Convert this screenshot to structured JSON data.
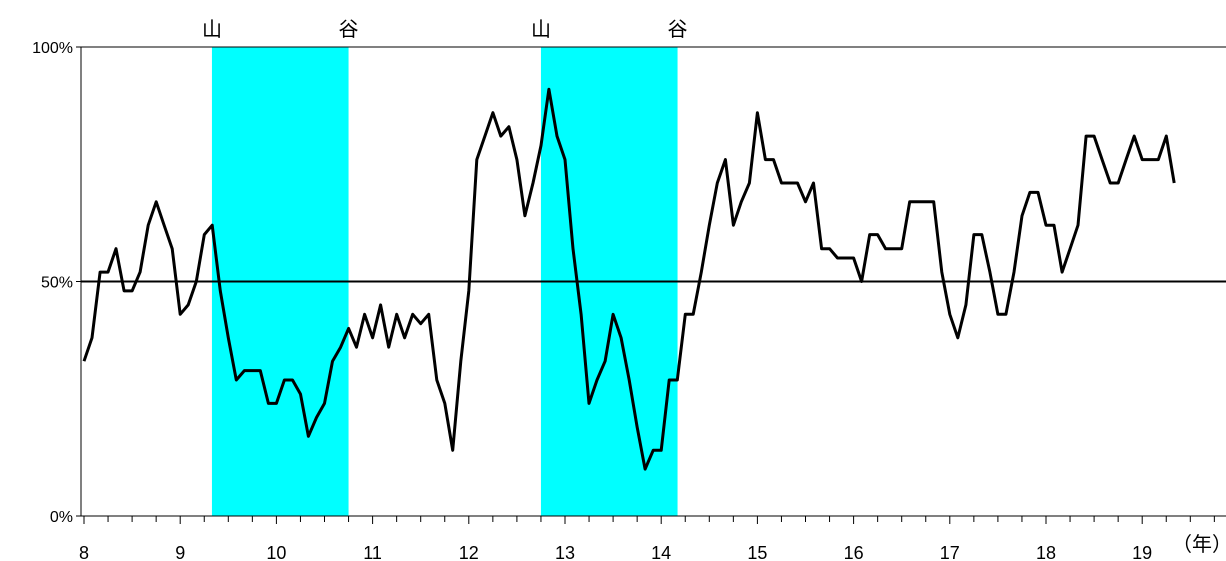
{
  "chart_data": {
    "type": "line",
    "x_unit_label": "（年）",
    "y_ticks": [
      "0%",
      "50%",
      "100%"
    ],
    "ylim": [
      0,
      100
    ],
    "xlim": [
      8,
      20
    ],
    "x_ticks": [
      "8",
      "9",
      "10",
      "11",
      "12",
      "13",
      "14",
      "15",
      "16",
      "17",
      "18",
      "19"
    ],
    "reference_line": 50,
    "shaded_periods": [
      {
        "start": 9.33,
        "end": 10.75,
        "start_label": "山",
        "end_label": "谷"
      },
      {
        "start": 12.75,
        "end": 14.17,
        "start_label": "山",
        "end_label": "谷"
      }
    ],
    "colors": {
      "line": "#000000",
      "shade": "#00ffff",
      "axis": "#000000"
    },
    "series": [
      {
        "x": [
          8.0,
          8.083,
          8.167,
          8.25,
          8.333,
          8.417,
          8.5,
          8.583,
          8.667,
          8.75,
          8.833,
          8.917,
          9.0,
          9.083,
          9.167,
          9.25,
          9.333,
          9.417,
          9.5,
          9.583,
          9.667,
          9.75,
          9.833,
          9.917,
          10.0,
          10.083,
          10.167,
          10.25,
          10.333,
          10.417,
          10.5,
          10.583,
          10.667,
          10.75,
          10.833,
          10.917,
          11.0,
          11.083,
          11.167,
          11.25,
          11.333,
          11.417,
          11.5,
          11.583,
          11.667,
          11.75,
          11.833,
          11.917,
          12.0,
          12.083,
          12.167,
          12.25,
          12.333,
          12.417,
          12.5,
          12.583,
          12.667,
          12.75,
          12.833,
          12.917,
          13.0,
          13.083,
          13.167,
          13.25,
          13.333,
          13.417,
          13.5,
          13.583,
          13.667,
          13.75,
          13.833,
          13.917,
          14.0,
          14.083,
          14.167,
          14.25,
          14.333,
          14.417,
          14.5,
          14.583,
          14.667,
          14.75,
          14.833,
          14.917,
          15.0,
          15.083,
          15.167,
          15.25,
          15.333,
          15.417,
          15.5,
          15.583,
          15.667,
          15.75,
          15.833,
          15.917,
          16.0,
          16.083,
          16.167,
          16.25,
          16.333,
          16.417,
          16.5,
          16.583,
          16.667,
          16.75,
          16.833,
          16.917,
          17.0,
          17.083,
          17.167,
          17.25,
          17.333,
          17.417,
          17.5,
          17.583,
          17.667,
          17.75,
          17.833,
          17.917,
          18.0,
          18.083,
          18.167,
          18.25,
          18.333,
          18.417,
          18.5,
          18.583,
          18.667,
          18.75,
          18.833,
          18.917,
          19.0,
          19.083,
          19.167,
          19.25,
          19.333
        ],
        "values": [
          33,
          38,
          52,
          52,
          57,
          48,
          48,
          52,
          62,
          67,
          62,
          57,
          43,
          45,
          50,
          60,
          62,
          48,
          38,
          29,
          31,
          31,
          31,
          24,
          24,
          29,
          29,
          26,
          17,
          21,
          24,
          33,
          36,
          40,
          36,
          43,
          38,
          45,
          36,
          43,
          38,
          43,
          41,
          43,
          29,
          24,
          14,
          33,
          48,
          76,
          81,
          86,
          81,
          83,
          76,
          64,
          71,
          79,
          91,
          81,
          76,
          57,
          43,
          24,
          29,
          33,
          43,
          38,
          29,
          19,
          10,
          14,
          14,
          29,
          29,
          43,
          43,
          52,
          62,
          71,
          76,
          62,
          67,
          71,
          86,
          76,
          76,
          71,
          71,
          71,
          67,
          71,
          57,
          57,
          55,
          55,
          55,
          50,
          60,
          60,
          57,
          57,
          57,
          67,
          67,
          67,
          67,
          52,
          43,
          38,
          45,
          60,
          60,
          52,
          43,
          43,
          52,
          64,
          69,
          69,
          62,
          62,
          52,
          57,
          62,
          81,
          81,
          76,
          71,
          71,
          76,
          81,
          76,
          76,
          76,
          81,
          71
        ]
      }
    ]
  }
}
